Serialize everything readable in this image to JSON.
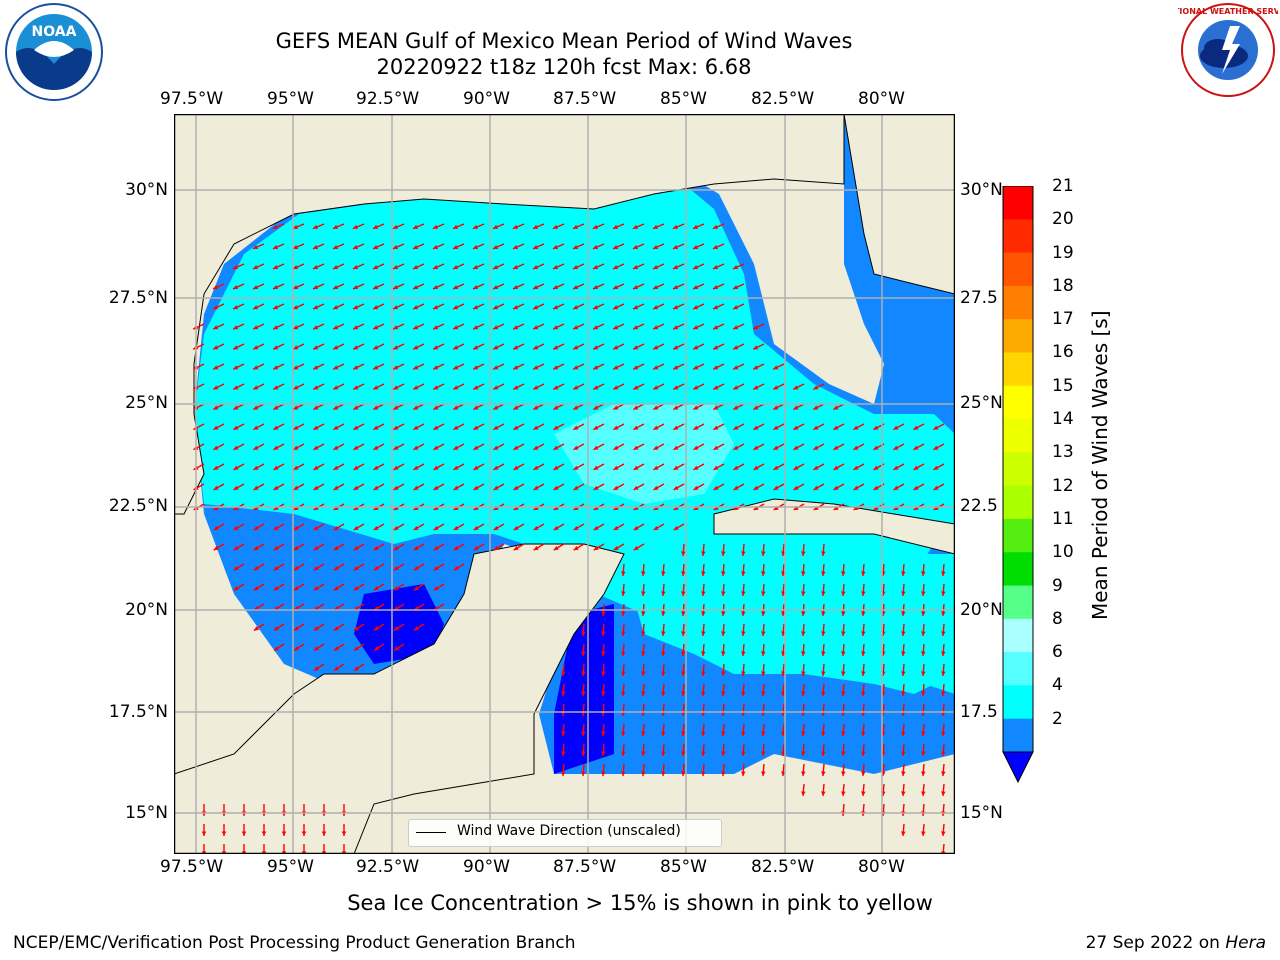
{
  "title": {
    "line1": "GEFS MEAN Gulf of Mexico Mean Period of Wind Waves",
    "line2": "20220922 t18z 120h fcst   Max: 6.68"
  },
  "logos": {
    "left": "NOAA",
    "right_text": "NATIONAL WEATHER SERVICE"
  },
  "map": {
    "lon_labels": [
      "97.5°W",
      "95°W",
      "92.5°W",
      "90°W",
      "87.5°W",
      "85°W",
      "82.5°W",
      "80°W"
    ],
    "lat_labels_left": [
      "30°N",
      "27.5°N",
      "25°N",
      "22.5°N",
      "20°N",
      "17.5°N",
      "15°N"
    ],
    "lat_labels_right": [
      "30°N",
      "27.5",
      "25°N",
      "22.5",
      "20°N",
      "17.5",
      "15°N"
    ],
    "legend_label": "Wind Wave Direction (unscaled)",
    "land_color": "#efedda",
    "arrow_color": "#ff0000",
    "grid": true
  },
  "colorbar": {
    "label": "Mean Period of Wind Waves [s]",
    "ticks": [
      "21",
      "20",
      "19",
      "18",
      "17",
      "16",
      "15",
      "14",
      "13",
      "12",
      "11",
      "10",
      "9",
      "8",
      "6",
      "4",
      "2"
    ],
    "colors": [
      "#ff0000",
      "#ff2a00",
      "#ff5500",
      "#ff8000",
      "#ffaa00",
      "#ffd400",
      "#ffff00",
      "#eeff00",
      "#ccff00",
      "#aaff00",
      "#55ee11",
      "#00dd00",
      "#55ff88",
      "#aaffff",
      "#55ffff",
      "#00ffff",
      "#1188ff"
    ],
    "extend_color": "#0000ff"
  },
  "subtitle": "Sea Ice Concentration > 15% is shown in pink to yellow",
  "footer": {
    "left": "NCEP/EMC/Verification Post Processing Product Generation Branch",
    "right_date": "27 Sep 2022 on ",
    "right_host": "Hera"
  }
}
